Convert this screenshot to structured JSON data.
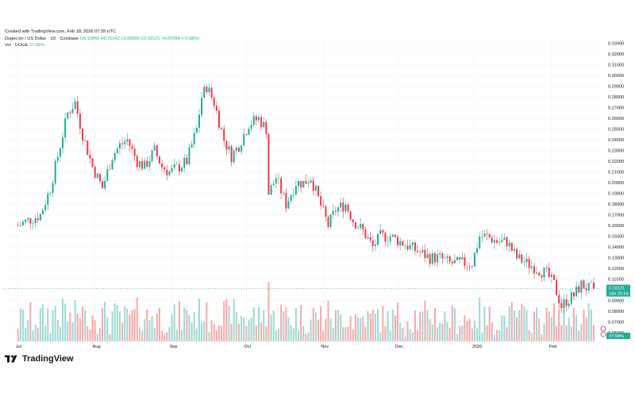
{
  "header": {
    "created": "Created with TradingView.com, Feb 18, 2026 07:39 UTC",
    "symbol_line": "Dogecoin / US Dollar · 1D · Coinbase",
    "open": "O0.10059",
    "high": "H0.10142",
    "low": "L0.09990",
    "close": "C0.10121",
    "change": "+0.00058 (+0.58%)",
    "vol_label": "Vol · DOGE",
    "vol_value": "37.58%"
  },
  "price_badge": {
    "value": "0.10121",
    "countdown": "16h 20:54"
  },
  "volume_badge": {
    "value": "37.58%"
  },
  "branding": {
    "name": "TradingView"
  },
  "colors": {
    "up": "#22ab94",
    "down": "#f23645",
    "vol_up": "#9fd8d1",
    "vol_down": "#f7a9a7",
    "text": "#131722",
    "grid": "#f0f3fa"
  },
  "chart_data": {
    "type": "candlestick",
    "symbol": "Dogecoin / US Dollar",
    "interval": "1D",
    "exchange": "Coinbase",
    "y_axis": {
      "ticks": [
        0.33,
        0.32,
        0.31,
        0.3,
        0.29,
        0.28,
        0.27,
        0.26,
        0.25,
        0.24,
        0.23,
        0.22,
        0.21,
        0.2,
        0.19,
        0.18,
        0.17,
        0.16,
        0.15,
        0.14,
        0.13,
        0.12,
        0.11,
        0.1,
        0.09,
        0.08,
        0.07,
        0.06
      ],
      "tick_labels": [
        "0.33000",
        "0.32000",
        "0.31000",
        "0.30000",
        "0.29000",
        "0.28000",
        "0.27000",
        "0.26000",
        "0.25000",
        "0.24000",
        "0.23000",
        "0.22000",
        "0.21000",
        "0.20000",
        "0.19000",
        "0.18000",
        "0.17000",
        "0.16000",
        "0.15000",
        "0.14000",
        "0.13000",
        "0.12000",
        "0.11000",
        "0.10000",
        "0.09000",
        "0.08000",
        "0.07000",
        "0.06000"
      ],
      "range": [
        0.052,
        0.335
      ]
    },
    "x_axis": {
      "labels": [
        "Jul",
        "Aug",
        "Sep",
        "Oct",
        "Nov",
        "Dec",
        "2026",
        "Feb"
      ]
    },
    "price_anchors": [
      [
        "Jul 1",
        0.16
      ],
      [
        "Jul 5",
        0.165
      ],
      [
        "Jul 10",
        0.17
      ],
      [
        "Jul 14",
        0.195
      ],
      [
        "Jul 17",
        0.225
      ],
      [
        "Jul 21",
        0.265
      ],
      [
        "Jul 24",
        0.275
      ],
      [
        "Jul 27",
        0.245
      ],
      [
        "Jul 31",
        0.215
      ],
      [
        "Aug 4",
        0.195
      ],
      [
        "Aug 8",
        0.225
      ],
      [
        "Aug 11",
        0.235
      ],
      [
        "Aug 14",
        0.24
      ],
      [
        "Aug 18",
        0.22
      ],
      [
        "Aug 21",
        0.215
      ],
      [
        "Aug 25",
        0.23
      ],
      [
        "Aug 28",
        0.215
      ],
      [
        "Aug 31",
        0.21
      ],
      [
        "Sep 4",
        0.215
      ],
      [
        "Sep 7",
        0.22
      ],
      [
        "Sep 11",
        0.25
      ],
      [
        "Sep 13",
        0.28
      ],
      [
        "Sep 15",
        0.29
      ],
      [
        "Sep 18",
        0.275
      ],
      [
        "Sep 22",
        0.24
      ],
      [
        "Sep 25",
        0.225
      ],
      [
        "Sep 28",
        0.235
      ],
      [
        "Oct 2",
        0.255
      ],
      [
        "Oct 6",
        0.26
      ],
      [
        "Oct 9",
        0.25
      ],
      [
        "Oct 10",
        0.19
      ],
      [
        "Oct 13",
        0.205
      ],
      [
        "Oct 17",
        0.18
      ],
      [
        "Oct 21",
        0.2
      ],
      [
        "Oct 24",
        0.2
      ],
      [
        "Oct 27",
        0.205
      ],
      [
        "Oct 30",
        0.185
      ],
      [
        "Nov 3",
        0.16
      ],
      [
        "Nov 6",
        0.175
      ],
      [
        "Nov 10",
        0.18
      ],
      [
        "Nov 13",
        0.165
      ],
      [
        "Nov 17",
        0.155
      ],
      [
        "Nov 21",
        0.14
      ],
      [
        "Nov 24",
        0.15
      ],
      [
        "Nov 28",
        0.15
      ],
      [
        "Dec 2",
        0.145
      ],
      [
        "Dec 6",
        0.14
      ],
      [
        "Dec 10",
        0.135
      ],
      [
        "Dec 14",
        0.13
      ],
      [
        "Dec 18",
        0.13
      ],
      [
        "Dec 22",
        0.125
      ],
      [
        "Dec 26",
        0.125
      ],
      [
        "Dec 31",
        0.125
      ],
      [
        "Jan 3",
        0.15
      ],
      [
        "Jan 6",
        0.15
      ],
      [
        "Jan 10",
        0.145
      ],
      [
        "Jan 14",
        0.145
      ],
      [
        "Jan 18",
        0.13
      ],
      [
        "Jan 22",
        0.125
      ],
      [
        "Jan 26",
        0.12
      ],
      [
        "Jan 30",
        0.115
      ],
      [
        "Feb 2",
        0.105
      ],
      [
        "Feb 5",
        0.085
      ],
      [
        "Feb 7",
        0.09
      ],
      [
        "Feb 10",
        0.095
      ],
      [
        "Feb 13",
        0.105
      ],
      [
        "Feb 16",
        0.101
      ],
      [
        "Feb 18",
        0.10121
      ]
    ],
    "volume_percent_shown": 37.58,
    "last_price": 0.10121
  }
}
